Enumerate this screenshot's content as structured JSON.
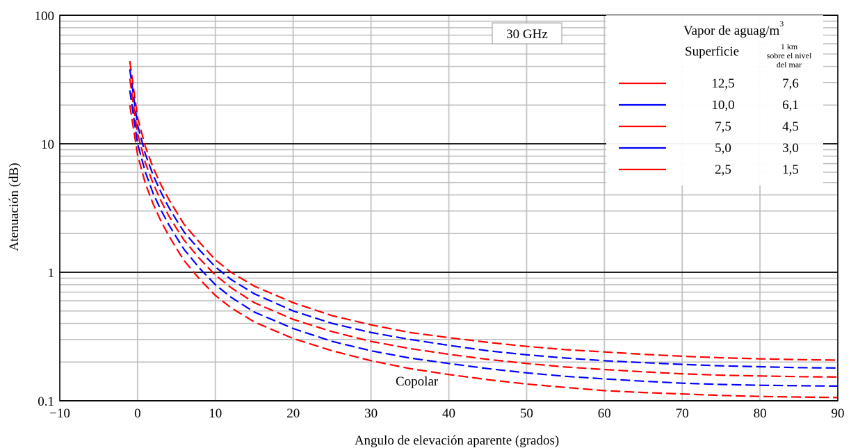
{
  "chart_data": {
    "type": "line",
    "title": "",
    "annotation_freq": "30 GHz",
    "annotation_label": "Copolar",
    "xlabel": "Angulo de elevación aparente (grados)",
    "ylabel": "Atenuación (dB)",
    "xscale": "linear",
    "yscale": "log",
    "xlim": [
      -10,
      90
    ],
    "ylim": [
      0.1,
      100
    ],
    "xticks": [
      -10,
      0,
      10,
      20,
      30,
      40,
      50,
      60,
      70,
      80,
      90
    ],
    "xtick_labels": [
      "−10",
      "0",
      "10",
      "20",
      "30",
      "40",
      "50",
      "60",
      "70",
      "80",
      "90"
    ],
    "yticks": [
      0.1,
      1,
      10,
      100
    ],
    "ytick_labels": [
      "0.1",
      "1",
      "10",
      "100"
    ],
    "grid": true,
    "line_style": "dashed",
    "legend": {
      "placement": "top-right",
      "header_main": "Vapor de agua",
      "header_unit": "g/m",
      "header_unit_sup": "3",
      "col1_header": "Superficie",
      "col2_header_l1": "1 km",
      "col2_header_l2": "sobre el nivel",
      "col2_header_l3": "del mar"
    },
    "x": [
      -1,
      0,
      1,
      2,
      3,
      4,
      5,
      6,
      8,
      10,
      12,
      15,
      20,
      25,
      30,
      35,
      40,
      45,
      50,
      55,
      60,
      65,
      70,
      75,
      80,
      85,
      90
    ],
    "series": [
      {
        "surface": "12,5",
        "one_km": "7,6",
        "color": "#ff0000",
        "values": [
          44,
          16,
          9.5,
          6.5,
          4.8,
          3.7,
          2.95,
          2.35,
          1.7,
          1.25,
          1.0,
          0.78,
          0.58,
          0.46,
          0.39,
          0.34,
          0.31,
          0.285,
          0.265,
          0.25,
          0.24,
          0.23,
          0.222,
          0.216,
          0.212,
          0.209,
          0.207
        ]
      },
      {
        "surface": "10,0",
        "one_km": "6,1",
        "color": "#0000ff",
        "values": [
          38,
          14,
          8.3,
          5.7,
          4.2,
          3.2,
          2.55,
          2.05,
          1.48,
          1.1,
          0.88,
          0.68,
          0.5,
          0.4,
          0.34,
          0.3,
          0.27,
          0.245,
          0.228,
          0.215,
          0.205,
          0.198,
          0.192,
          0.187,
          0.184,
          0.181,
          0.18
        ]
      },
      {
        "surface": "7,5",
        "one_km": "4,5",
        "color": "#ff0000",
        "values": [
          32,
          12,
          7.1,
          4.9,
          3.6,
          2.75,
          2.2,
          1.77,
          1.27,
          0.95,
          0.76,
          0.58,
          0.43,
          0.345,
          0.29,
          0.255,
          0.23,
          0.21,
          0.195,
          0.183,
          0.175,
          0.168,
          0.162,
          0.158,
          0.156,
          0.154,
          0.153
        ]
      },
      {
        "surface": "5,0",
        "one_km": "3,0",
        "color": "#0000ff",
        "values": [
          26,
          10,
          6.0,
          4.1,
          3.05,
          2.35,
          1.87,
          1.5,
          1.07,
          0.8,
          0.64,
          0.49,
          0.365,
          0.29,
          0.245,
          0.215,
          0.195,
          0.178,
          0.165,
          0.155,
          0.148,
          0.142,
          0.137,
          0.134,
          0.132,
          0.131,
          0.13
        ]
      },
      {
        "surface": "2,5",
        "one_km": "1,5",
        "color": "#ff0000",
        "values": [
          20,
          8.2,
          4.9,
          3.4,
          2.5,
          1.93,
          1.53,
          1.23,
          0.88,
          0.66,
          0.53,
          0.41,
          0.305,
          0.245,
          0.205,
          0.178,
          0.16,
          0.146,
          0.135,
          0.127,
          0.12,
          0.116,
          0.113,
          0.11,
          0.108,
          0.107,
          0.106
        ]
      }
    ]
  }
}
